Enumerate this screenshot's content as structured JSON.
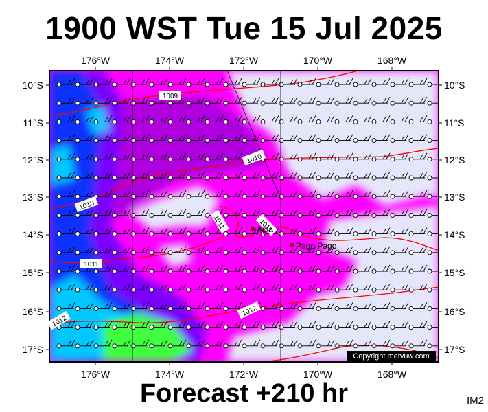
{
  "title": "1900 WST Tue 15 Jul 2025",
  "footer": "Forecast +210 hr",
  "code": "IM2",
  "copyright": "Copyright metvuw.com",
  "lon_labels": [
    "176°W",
    "174°W",
    "172°W",
    "170°W",
    "168°W"
  ],
  "lat_labels": [
    "10°S",
    "11°S",
    "12°S",
    "13°S",
    "14°S",
    "15°S",
    "16°S",
    "17°S"
  ],
  "isobar_labels": [
    "1009",
    "1010",
    "1010",
    "1011",
    "1011",
    "1011",
    "1012",
    "1012"
  ],
  "places": [
    {
      "name": "Apia",
      "lon": -171.76,
      "lat": -13.83
    },
    {
      "name": "Pago Pago",
      "lon": -170.7,
      "lat": -14.28
    }
  ],
  "colors": {
    "frame": "#000000",
    "isobar": "#ff0000",
    "rain_light": "#e6e6fa",
    "rain_magenta": "#ff00ff",
    "rain_purple": "#b000e0",
    "rain_violet": "#7a00ff",
    "rain_blue": "#1030ff",
    "rain_cyan": "#00c8ff",
    "rain_green": "#40ff40"
  }
}
